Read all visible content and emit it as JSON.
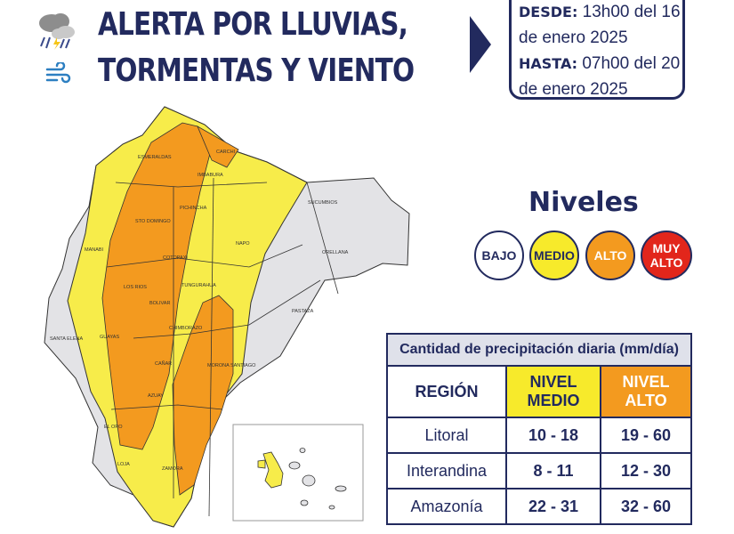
{
  "header": {
    "title_line1": "ALERTA POR LLUVIAS,",
    "title_line2": "TORMENTAS Y VIENTO",
    "icons": [
      "storm-cloud-icon",
      "wind-icon"
    ]
  },
  "period": {
    "from_label": "DESDE:",
    "from_value": "13h00 del 16 de enero 2025",
    "to_label": "HASTA:",
    "to_value": "07h00 del 20 de enero 2025"
  },
  "levels": {
    "title": "Niveles",
    "items": [
      {
        "label": "BAJO",
        "color": "#ffffff"
      },
      {
        "label": "MEDIO",
        "color": "#f7ea2b"
      },
      {
        "label": "ALTO",
        "color": "#f39a1f"
      },
      {
        "label": "MUY ALTO",
        "color": "#e2261b"
      }
    ]
  },
  "table": {
    "title": "Cantidad de precipitación diaria (mm/día)",
    "col_region": "REGIÓN",
    "col_medio": "NIVEL MEDIO",
    "col_alto": "NIVEL ALTO",
    "rows": [
      {
        "region": "Litoral",
        "medio": "10 - 18",
        "alto": "19 - 60"
      },
      {
        "region": "Interandina",
        "medio": "8 - 11",
        "alto": "12 - 30"
      },
      {
        "region": "Amazonía",
        "medio": "22 - 31",
        "alto": "32 - 60"
      }
    ]
  },
  "map": {
    "provinces": [
      "ESMERALDAS",
      "CARCHI",
      "IMBABURA",
      "SUCUMBIOS",
      "PICHINCHA",
      "STO DOMINGO",
      "MANABI",
      "NAPO",
      "ORELLANA",
      "COTOPAXI",
      "LOS RIOS",
      "TUNGURAHUA",
      "BOLIVAR",
      "PASTAZA",
      "SANTA ELENA",
      "GUAYAS",
      "CHIMBORAZO",
      "CAÑAR",
      "MORONA SANTIAGO",
      "AZUAY",
      "EL ORO",
      "LOJA",
      "ZAMORA"
    ]
  }
}
